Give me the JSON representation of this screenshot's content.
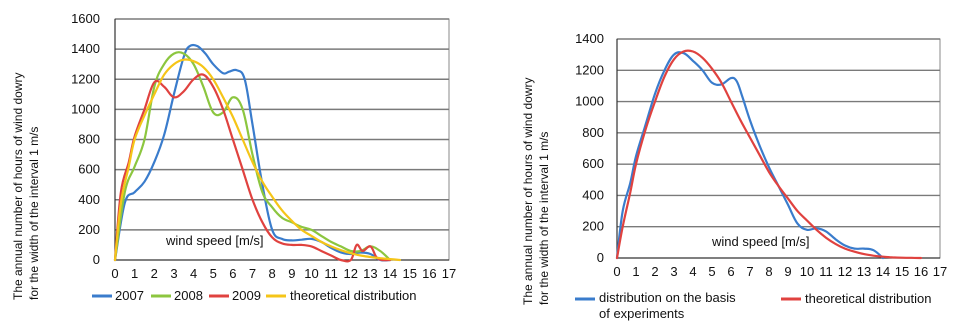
{
  "chart_data": [
    {
      "type": "line",
      "ylabel": "The annual number of hours of wind dowry for the width of the interval 1 m/s",
      "xlabel_annotation": "wind speed [m/s]",
      "xlim": [
        0,
        17
      ],
      "ylim": [
        0,
        1600
      ],
      "xticks": [
        "0",
        "1",
        "2",
        "3",
        "4",
        "5",
        "6",
        "7",
        "8",
        "9",
        "10",
        "11",
        "12",
        "13",
        "14",
        "15",
        "16",
        "17"
      ],
      "yticks": [
        "0",
        "200",
        "400",
        "600",
        "800",
        "1000",
        "1200",
        "1400",
        "1600"
      ],
      "grid": true,
      "legend_position": "bottom",
      "series": [
        {
          "name": "2007",
          "color": "#3a7ccc",
          "x": [
            0,
            0.5,
            1,
            1.5,
            2,
            2.5,
            3,
            3.5,
            3.8,
            4.2,
            4.6,
            5,
            5.5,
            5.8,
            6.2,
            6.6,
            7,
            7.5,
            8,
            8.5,
            9,
            9.5,
            10,
            10.5,
            11,
            11.5,
            12,
            12.5,
            13,
            13.5,
            14
          ],
          "y": [
            0,
            380,
            450,
            520,
            650,
            830,
            1100,
            1350,
            1420,
            1420,
            1370,
            1300,
            1240,
            1250,
            1260,
            1200,
            900,
            500,
            200,
            140,
            130,
            135,
            140,
            120,
            80,
            50,
            40,
            50,
            40,
            0,
            0
          ]
        },
        {
          "name": "2008",
          "color": "#8cc63f",
          "x": [
            0,
            0.5,
            1,
            1.5,
            2,
            2.5,
            3,
            3.5,
            4,
            4.5,
            5,
            5.5,
            6,
            6.5,
            7,
            7.5,
            8,
            8.5,
            9,
            9.5,
            10,
            10.5,
            11,
            11.5,
            12,
            12.5,
            13,
            13.5,
            14
          ],
          "y": [
            0,
            450,
            620,
            800,
            1150,
            1300,
            1370,
            1370,
            1300,
            1150,
            980,
            980,
            1080,
            1000,
            700,
            450,
            350,
            280,
            250,
            220,
            200,
            160,
            120,
            90,
            60,
            60,
            90,
            60,
            0
          ]
        },
        {
          "name": "2009",
          "color": "#e0423f",
          "x": [
            0,
            0.3,
            0.7,
            1,
            1.5,
            2,
            2.5,
            3,
            3.5,
            4,
            4.5,
            5,
            5.5,
            6,
            6.5,
            7,
            7.5,
            8,
            8.5,
            9,
            9.5,
            10,
            10.5,
            11,
            11.5,
            12,
            12.3,
            12.6,
            13,
            13.3,
            13.6,
            14
          ],
          "y": [
            0,
            450,
            650,
            820,
            1000,
            1180,
            1150,
            1080,
            1120,
            1200,
            1230,
            1150,
            1000,
            800,
            600,
            400,
            250,
            150,
            110,
            100,
            100,
            90,
            60,
            30,
            0,
            0,
            100,
            60,
            90,
            20,
            0,
            0
          ]
        },
        {
          "name": "theoretical distribution",
          "color": "#f5c518",
          "x": [
            0,
            0.3,
            0.7,
            1,
            1.5,
            2,
            2.5,
            3,
            3.5,
            4,
            4.5,
            5,
            5.5,
            6,
            6.5,
            7,
            7.5,
            8,
            8.5,
            9,
            9.5,
            10,
            10.5,
            11,
            11.5,
            12,
            12.5,
            13,
            13.5,
            14,
            14.5
          ],
          "y": [
            0,
            380,
            620,
            800,
            960,
            1100,
            1230,
            1300,
            1330,
            1320,
            1280,
            1200,
            1080,
            950,
            800,
            650,
            520,
            420,
            330,
            260,
            200,
            160,
            120,
            90,
            65,
            45,
            30,
            20,
            12,
            6,
            0
          ]
        }
      ]
    },
    {
      "type": "line",
      "ylabel": "The annual number of hours of wind dowry for the width of the interval 1 m/s",
      "xlabel_annotation": "wind speed [m/s]",
      "xlim": [
        0,
        17
      ],
      "ylim": [
        0,
        1400
      ],
      "xticks": [
        "0",
        "1",
        "2",
        "3",
        "4",
        "5",
        "6",
        "7",
        "8",
        "9",
        "10",
        "11",
        "12",
        "13",
        "14",
        "15",
        "16",
        "17"
      ],
      "yticks": [
        "0",
        "200",
        "400",
        "600",
        "800",
        "1000",
        "1200",
        "1400"
      ],
      "grid": true,
      "legend_position": "bottom",
      "series": [
        {
          "name": "distribution on the basis of experiments",
          "name_lines": [
            "distribution on the basis",
            "of experiments"
          ],
          "color": "#3a7ccc",
          "x": [
            0,
            0.3,
            0.7,
            1,
            1.5,
            2,
            2.5,
            3,
            3.5,
            4,
            4.5,
            5,
            5.5,
            6,
            6.3,
            6.6,
            7,
            7.5,
            8,
            8.5,
            9,
            9.5,
            10,
            10.5,
            11,
            11.5,
            12,
            12.5,
            13,
            13.5,
            14
          ],
          "y": [
            0,
            300,
            480,
            650,
            850,
            1050,
            1200,
            1300,
            1310,
            1260,
            1200,
            1120,
            1110,
            1150,
            1130,
            1030,
            880,
            720,
            580,
            460,
            340,
            220,
            180,
            190,
            170,
            120,
            80,
            60,
            60,
            50,
            0
          ]
        },
        {
          "name": "theoretical distribution",
          "color": "#e0423f",
          "x": [
            0,
            0.3,
            0.7,
            1,
            1.5,
            2,
            2.5,
            3,
            3.5,
            4,
            4.5,
            5,
            5.5,
            6,
            6.5,
            7,
            7.5,
            8,
            8.5,
            9,
            9.5,
            10,
            10.5,
            11,
            11.5,
            12,
            12.5,
            13,
            13.5,
            14,
            14.5,
            15,
            15.5,
            16
          ],
          "y": [
            0,
            200,
            420,
            600,
            820,
            1000,
            1160,
            1270,
            1320,
            1320,
            1280,
            1210,
            1120,
            1000,
            880,
            770,
            660,
            550,
            460,
            380,
            300,
            240,
            180,
            130,
            90,
            60,
            40,
            25,
            15,
            8,
            4,
            2,
            1,
            0
          ]
        }
      ]
    }
  ]
}
